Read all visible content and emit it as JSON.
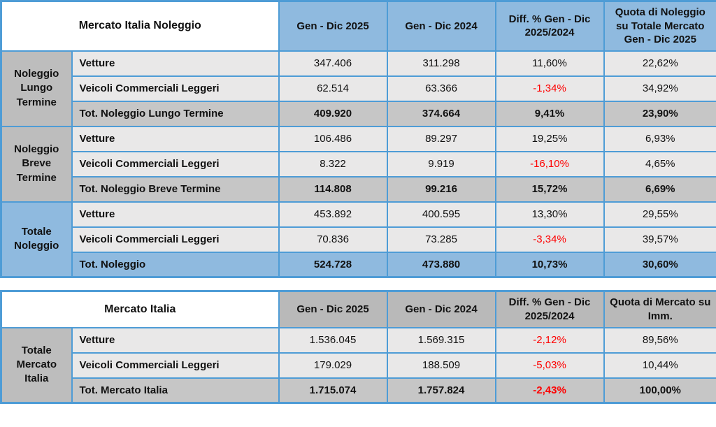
{
  "colors": {
    "header_blue": "#8fbadf",
    "header_gray": "#b9b9b9",
    "group_gray": "#bdbdbd",
    "row_light": "#e9e8e8",
    "row_total_gray": "#c6c6c6",
    "row_total_blue": "#8fbadf",
    "grid_blue": "#4e9cd6",
    "negative_red": "#fe0000",
    "text_black": "#111111"
  },
  "noleggio_table": {
    "title": "Mercato Italia Noleggio",
    "columns": {
      "y2025": "Gen - Dic 2025",
      "y2024": "Gen - Dic 2024",
      "diff": "Diff. % Gen - Dic 2025/2024",
      "quota": "Quota di Noleggio su Totale Mercato Gen - Dic 2025"
    },
    "groups": [
      {
        "name": "Noleggio Lungo Termine",
        "rows": [
          [
            "Vetture",
            "347.406",
            "311.298",
            "11,60%",
            "22,62%"
          ],
          [
            "Veicoli Commerciali Leggeri",
            "62.514",
            "63.366",
            "-1,34%",
            "34,92%"
          ],
          [
            "Tot. Noleggio Lungo Termine",
            "409.920",
            "374.664",
            "9,41%",
            "23,90%"
          ]
        ]
      },
      {
        "name": "Noleggio Breve Termine",
        "rows": [
          [
            "Vetture",
            "106.486",
            "89.297",
            "19,25%",
            "6,93%"
          ],
          [
            "Veicoli Commerciali Leggeri",
            "8.322",
            "9.919",
            "-16,10%",
            "4,65%"
          ],
          [
            "Tot. Noleggio Breve Termine",
            "114.808",
            "99.216",
            "15,72%",
            "6,69%"
          ]
        ]
      },
      {
        "name": "Totale Noleggio",
        "rows": [
          [
            "Vetture",
            "453.892",
            "400.595",
            "13,30%",
            "29,55%"
          ],
          [
            "Veicoli Commerciali Leggeri",
            "70.836",
            "73.285",
            "-3,34%",
            "39,57%"
          ],
          [
            "Tot. Noleggio",
            "524.728",
            "473.880",
            "10,73%",
            "30,60%"
          ]
        ]
      }
    ]
  },
  "mercato_table": {
    "title": "Mercato Italia",
    "columns": {
      "y2025": "Gen - Dic 2025",
      "y2024": "Gen - Dic 2024",
      "diff": "Diff. % Gen - Dic 2025/2024",
      "quota": "Quota di Mercato su Imm."
    },
    "groups": [
      {
        "name": "Totale Mercato Italia",
        "rows": [
          [
            "Vetture",
            "1.536.045",
            "1.569.315",
            "-2,12%",
            "89,56%"
          ],
          [
            "Veicoli Commerciali Leggeri",
            "179.029",
            "188.509",
            "-5,03%",
            "10,44%"
          ],
          [
            "Tot. Mercato Italia",
            "1.715.074",
            "1.757.824",
            "-2,43%",
            "100,00%"
          ]
        ]
      }
    ]
  }
}
